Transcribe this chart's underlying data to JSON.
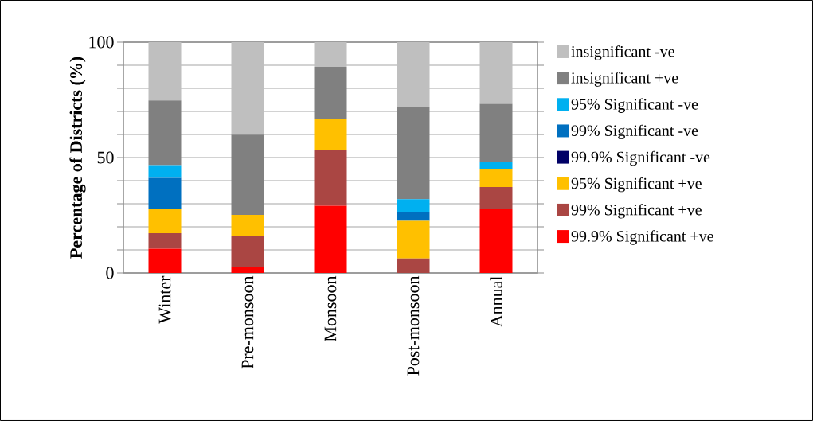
{
  "chart_data": {
    "type": "bar",
    "stacked": true,
    "ylabel": "Percentage of Districts (%)",
    "categories": [
      "Winter",
      "Pre-monsoon",
      "Monsoon",
      "Post-monsoon",
      "Annual"
    ],
    "series": [
      {
        "name": "99.9% Significant +ve",
        "color": "#ff0000",
        "values": [
          10.5,
          2.6,
          29.1,
          0,
          27.8
        ]
      },
      {
        "name": "99% Significant +ve",
        "color": "#aa4643",
        "values": [
          6.7,
          13.3,
          24.1,
          6.3,
          9.4
        ]
      },
      {
        "name": "95% Significant +ve",
        "color": "#ffc000",
        "values": [
          10.7,
          9.3,
          13.5,
          16.3,
          8
        ]
      },
      {
        "name": "99.9% Significant -ve",
        "color": "#000066",
        "values": [
          0,
          0,
          0,
          0,
          0
        ]
      },
      {
        "name": "99% Significant -ve",
        "color": "#0070c0",
        "values": [
          13.3,
          0,
          0,
          3.8,
          0
        ]
      },
      {
        "name": "95% Significant -ve",
        "color": "#00b0f0",
        "values": [
          5.5,
          0,
          0,
          5.6,
          2.7
        ]
      },
      {
        "name": "insignificant +ve",
        "color": "#808080",
        "values": [
          28,
          34.7,
          22.6,
          40,
          25.4
        ]
      },
      {
        "name": "insignificant -ve",
        "color": "#bfbfbf",
        "values": [
          25.3,
          40.1,
          10.7,
          28,
          26.7
        ]
      }
    ],
    "ylim": [
      0,
      100
    ],
    "yticks": [
      0,
      {
        "value": 10,
        "label": null
      },
      {
        "value": 20,
        "label": null
      },
      {
        "value": 30,
        "label": null
      },
      {
        "value": 40,
        "label": null
      },
      50,
      {
        "value": 60,
        "label": null
      },
      {
        "value": 70,
        "label": null
      },
      {
        "value": 80,
        "label": null
      },
      {
        "value": 90,
        "label": null
      },
      100
    ],
    "grid": "y",
    "legend": "right"
  }
}
